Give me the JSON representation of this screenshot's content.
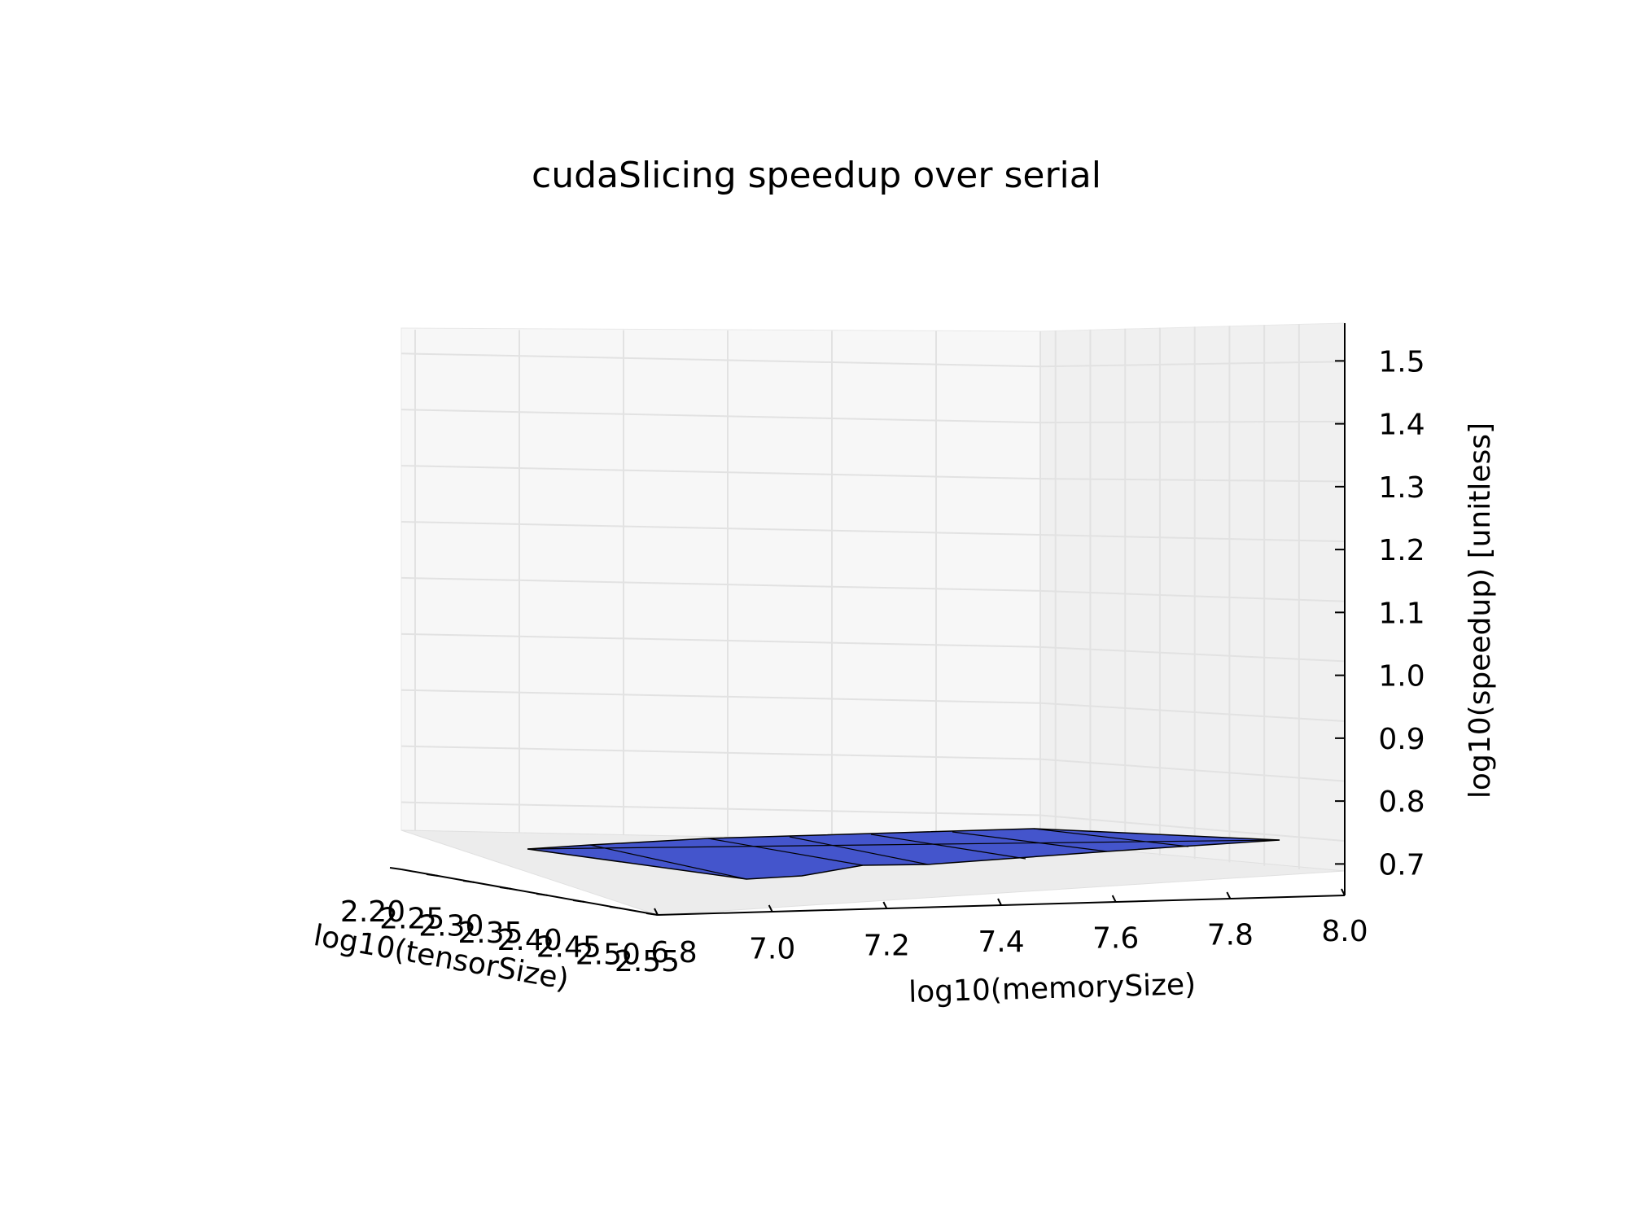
{
  "chart_data": {
    "type": "surface3d",
    "title": "cudaSlicing speedup over serial",
    "xlabel": "log10(memorySize)",
    "ylabel": "log10(tensorSize)",
    "zlabel": "log10(speedup) [unitless]",
    "x_ticks": [
      "6.8",
      "7.0",
      "7.2",
      "7.4",
      "7.6",
      "7.8",
      "8.0"
    ],
    "y_ticks": [
      "2.20",
      "2.25",
      "2.30",
      "2.35",
      "2.40",
      "2.45",
      "2.50",
      "2.55"
    ],
    "z_ticks": [
      "0.7",
      "0.8",
      "0.9",
      "1.0",
      "1.1",
      "1.2",
      "1.3",
      "1.4",
      "1.5"
    ],
    "xlim": [
      6.8,
      8.0
    ],
    "ylim": [
      2.2,
      2.55
    ],
    "zlim": [
      0.65,
      1.56
    ],
    "grid": true,
    "surface_color": "#4455cc",
    "surface_edge_color": "#000000",
    "surface": {
      "x": [
        7.0,
        7.1,
        7.2,
        7.3,
        7.4,
        7.5,
        7.6,
        7.7,
        7.8,
        8.0
      ],
      "z": [
        0.7,
        0.7,
        0.71,
        0.71,
        0.71,
        0.71,
        0.71,
        0.71,
        0.71,
        0.71
      ]
    }
  }
}
